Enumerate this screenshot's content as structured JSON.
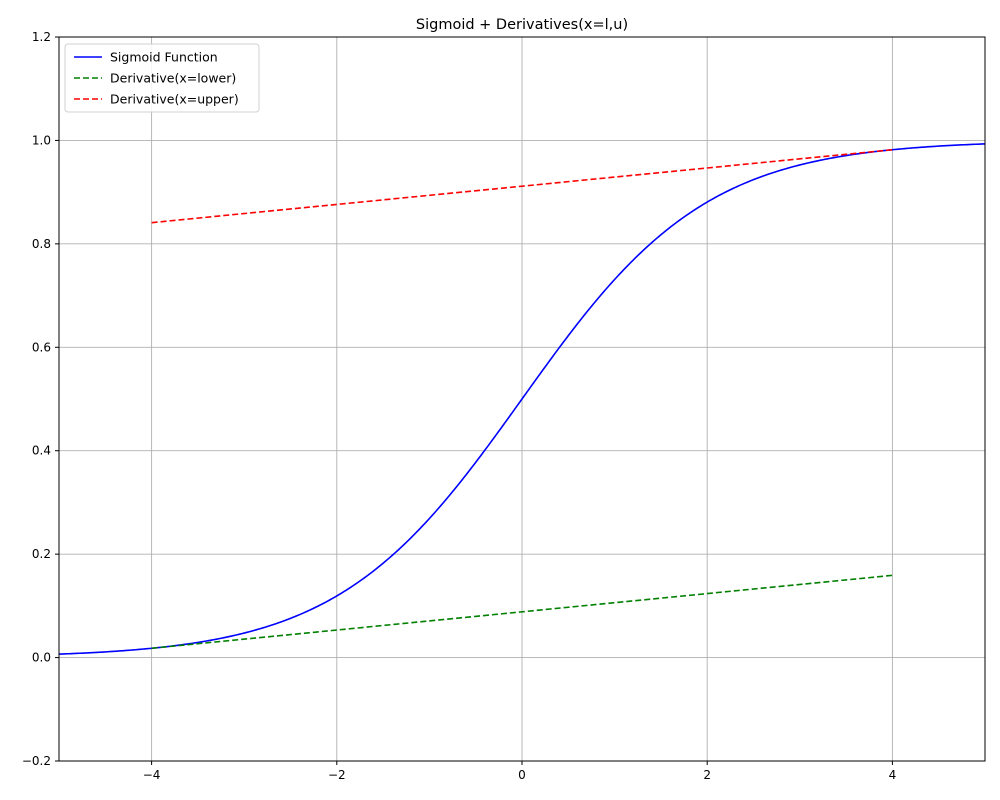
{
  "chart_data": {
    "type": "line",
    "title": "Sigmoid + Derivatives(x=l,u)",
    "xlabel": "",
    "ylabel": "",
    "xlim": [
      -5,
      5
    ],
    "ylim": [
      -0.2,
      1.2
    ],
    "xticks": [
      -4,
      -2,
      0,
      2,
      4
    ],
    "xtick_labels": [
      "−4",
      "−2",
      "0",
      "2",
      "4"
    ],
    "yticks": [
      -0.2,
      0.0,
      0.2,
      0.4,
      0.6,
      0.8,
      1.0,
      1.2
    ],
    "ytick_labels": [
      "−0.2",
      "0.0",
      "0.2",
      "0.4",
      "0.6",
      "0.8",
      "1.0",
      "1.2"
    ],
    "grid": true,
    "legend_position": "top-left",
    "series": [
      {
        "name": "Sigmoid Function",
        "color": "#0000ff",
        "style": "solid",
        "x": [
          -5,
          -4.5,
          -4,
          -3.5,
          -3,
          -2.5,
          -2,
          -1.5,
          -1,
          -0.5,
          0,
          0.5,
          1,
          1.5,
          2,
          2.5,
          3,
          3.5,
          4,
          4.5,
          5
        ],
        "y": [
          0.0067,
          0.011,
          0.018,
          0.0293,
          0.0474,
          0.0759,
          0.1192,
          0.1824,
          0.2689,
          0.3775,
          0.5,
          0.6225,
          0.7311,
          0.8176,
          0.8808,
          0.9241,
          0.9526,
          0.9707,
          0.982,
          0.989,
          0.9933
        ]
      },
      {
        "name": "Derivative(x=lower)",
        "color": "#008000",
        "style": "dashed",
        "x": [
          -4,
          4
        ],
        "y": [
          0.018,
          0.159
        ]
      },
      {
        "name": "Derivative(x=upper)",
        "color": "#ff0000",
        "style": "dashed",
        "x": [
          -4,
          4
        ],
        "y": [
          0.841,
          0.982
        ]
      }
    ]
  }
}
